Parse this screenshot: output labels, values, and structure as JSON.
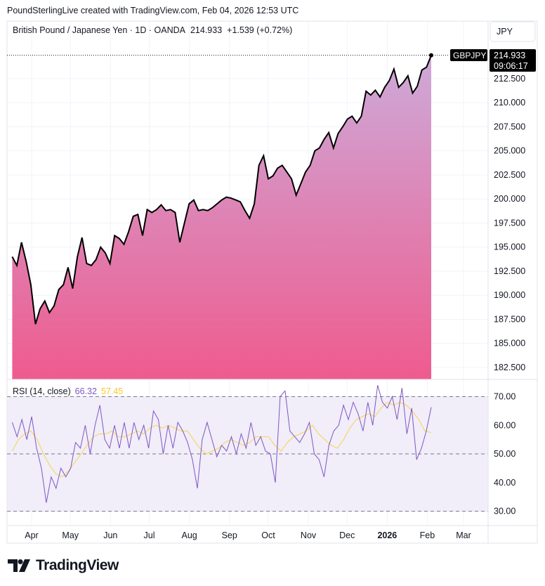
{
  "attribution": "PoundSterlingLive created with TradingView.com, Feb 04, 2026 12:53 UTC",
  "brand": "TradingView",
  "currency_button": "JPY",
  "legend": {
    "title": "British Pound / Japanese Yen · 1D · OANDA",
    "last": "214.933",
    "change": "+1.539 (+0.72%)"
  },
  "price_tag": {
    "symbol": "GBPJPY",
    "price": "214.933",
    "countdown": "09:06:17"
  },
  "rsi_legend": {
    "label": "RSI (14, close)",
    "rsi": "66.32",
    "ma": "57.45"
  },
  "colors": {
    "line": "#000000",
    "area_top": "#cdaad9",
    "area_bottom": "#ef5b8e",
    "rsi": "#7e57c2",
    "rsi_ma": "#f7d44a",
    "rsi_band": "#f1edf9"
  },
  "chart_data": [
    {
      "type": "area",
      "title": "British Pound / Japanese Yen · 1D · OANDA",
      "x_start": "2025-03-17",
      "x_end": "2026-02-04",
      "xlim": [
        "2025-03-13",
        "2026-03-20"
      ],
      "ylim": [
        181.3,
        216.5
      ],
      "grid": true,
      "y_ticks": [
        "212.500",
        "210.000",
        "207.500",
        "205.000",
        "202.500",
        "200.000",
        "197.500",
        "195.000",
        "192.500",
        "190.000",
        "187.500",
        "185.000",
        "182.500"
      ],
      "x_ticks": [
        {
          "label": "Apr",
          "date": "2025-04-01"
        },
        {
          "label": "May",
          "date": "2025-05-01"
        },
        {
          "label": "Jun",
          "date": "2025-06-01"
        },
        {
          "label": "Jul",
          "date": "2025-07-01"
        },
        {
          "label": "Aug",
          "date": "2025-08-01"
        },
        {
          "label": "Sep",
          "date": "2025-09-01"
        },
        {
          "label": "Oct",
          "date": "2025-10-01"
        },
        {
          "label": "Nov",
          "date": "2025-11-01"
        },
        {
          "label": "Dec",
          "date": "2025-12-01"
        },
        {
          "label": "2026",
          "date": "2026-01-01",
          "bold": true
        },
        {
          "label": "Feb",
          "date": "2026-02-01"
        },
        {
          "label": "Mar",
          "date": "2026-03-01"
        }
      ],
      "values": [
        194.0,
        193.1,
        195.5,
        193.5,
        191.1,
        187.0,
        188.6,
        189.4,
        188.2,
        188.9,
        190.6,
        191.1,
        192.9,
        190.7,
        194.0,
        196.0,
        193.3,
        193.1,
        193.7,
        195.0,
        194.4,
        193.3,
        196.2,
        195.9,
        195.3,
        196.6,
        198.2,
        198.4,
        196.2,
        198.9,
        198.6,
        198.9,
        199.4,
        198.8,
        198.9,
        198.6,
        195.5,
        197.5,
        199.5,
        199.9,
        198.8,
        198.9,
        198.8,
        199.1,
        199.5,
        199.9,
        200.2,
        200.1,
        199.9,
        199.7,
        198.8,
        198.0,
        199.5,
        203.5,
        204.5,
        202.1,
        202.4,
        203.2,
        203.5,
        202.8,
        202.1,
        200.4,
        201.6,
        202.8,
        203.5,
        205.0,
        205.3,
        206.2,
        206.9,
        205.3,
        206.8,
        207.5,
        208.3,
        208.6,
        207.9,
        208.6,
        211.2,
        210.8,
        211.3,
        210.6,
        211.6,
        212.3,
        213.5,
        211.6,
        212.1,
        212.8,
        211.0,
        211.7,
        213.4,
        213.7,
        214.933
      ]
    },
    {
      "type": "line",
      "title": "RSI (14, close)",
      "x_start": "2025-03-17",
      "x_end": "2026-02-04",
      "ylim": [
        25,
        76
      ],
      "y_ticks": [
        "70.00",
        "60.00",
        "50.00",
        "40.00",
        "30.00"
      ],
      "bands": [
        70,
        50,
        30
      ],
      "series": [
        {
          "name": "RSI",
          "values": [
            61,
            56,
            62,
            55,
            63,
            52,
            45,
            33,
            42,
            38,
            45,
            42,
            45,
            54,
            52,
            60,
            50,
            60,
            67,
            55,
            52,
            60,
            52,
            61,
            52,
            61,
            55,
            60,
            52,
            65,
            62,
            50,
            60,
            52,
            61,
            58,
            54,
            48,
            38,
            55,
            61,
            55,
            49,
            53,
            51,
            56,
            50,
            57,
            52,
            61,
            53,
            56,
            51,
            50,
            40,
            70,
            72,
            58,
            56,
            54,
            57,
            61,
            50,
            48,
            42,
            53,
            58,
            60,
            67,
            62,
            68,
            64,
            58,
            68,
            60,
            74,
            68,
            66,
            70,
            62,
            73,
            57,
            66,
            48,
            52,
            58,
            66.32
          ]
        },
        {
          "name": "MA",
          "values": [
            51,
            55,
            57,
            58,
            55,
            50,
            46,
            43,
            42,
            44,
            47,
            50,
            53,
            56,
            57,
            57,
            58,
            56,
            56,
            57,
            58,
            57,
            59,
            60,
            59,
            60,
            59,
            58,
            58,
            55,
            52,
            50,
            51,
            52,
            54,
            55,
            54,
            53,
            54,
            56,
            56,
            56,
            53,
            51,
            54,
            56,
            57,
            58,
            60,
            57,
            55,
            53,
            52,
            55,
            59,
            62,
            63,
            64,
            63,
            66,
            68,
            67,
            68,
            67,
            65,
            62,
            58,
            57.45
          ]
        }
      ]
    }
  ]
}
